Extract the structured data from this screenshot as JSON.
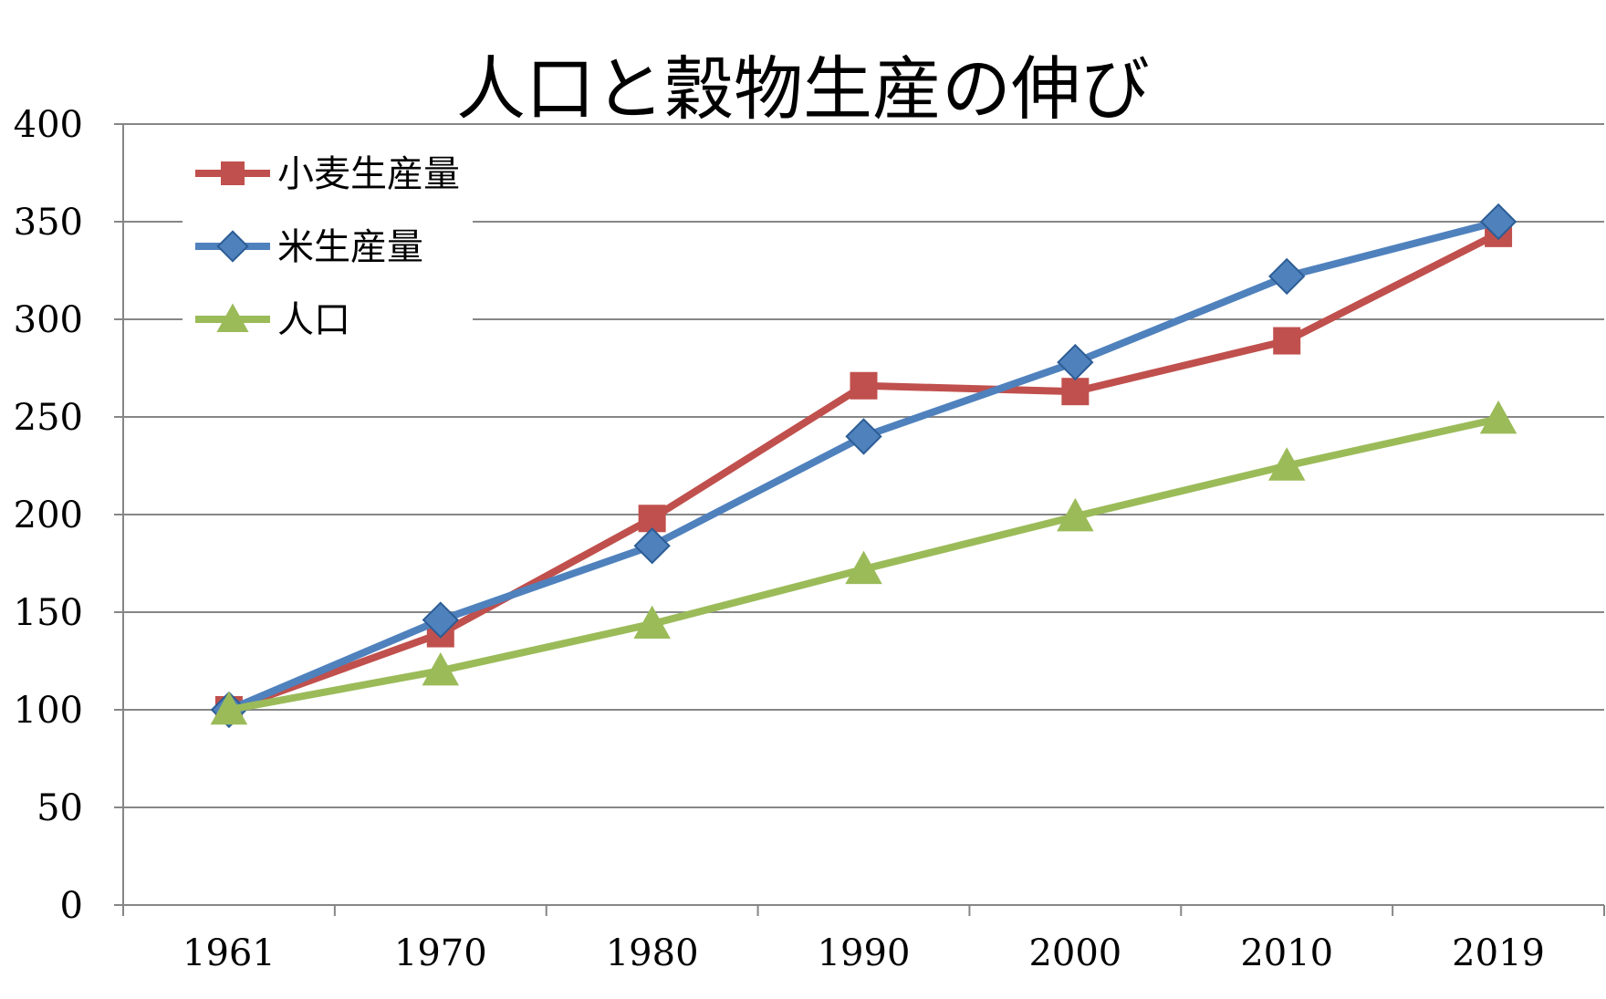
{
  "chart_data": {
    "type": "line",
    "title": "人口と穀物生産の伸び",
    "xlabel": "",
    "ylabel": "",
    "categories": [
      "1961",
      "1970",
      "1980",
      "1990",
      "2000",
      "2010",
      "2019"
    ],
    "ylim": [
      0,
      400
    ],
    "yticks": [
      0,
      50,
      100,
      150,
      200,
      250,
      300,
      350,
      400
    ],
    "grid": true,
    "legend_position": "top-left",
    "series": [
      {
        "name": "小麦生産量",
        "color": "#C0504D",
        "marker": "square",
        "values": [
          100,
          139,
          198,
          266,
          263,
          289,
          344
        ]
      },
      {
        "name": "米生産量",
        "color": "#4F81BD",
        "marker": "diamond",
        "values": [
          100,
          146,
          184,
          240,
          278,
          322,
          350
        ]
      },
      {
        "name": "人口",
        "color": "#9BBB59",
        "marker": "triangle",
        "values": [
          100,
          120,
          144,
          172,
          199,
          225,
          249
        ]
      }
    ]
  }
}
